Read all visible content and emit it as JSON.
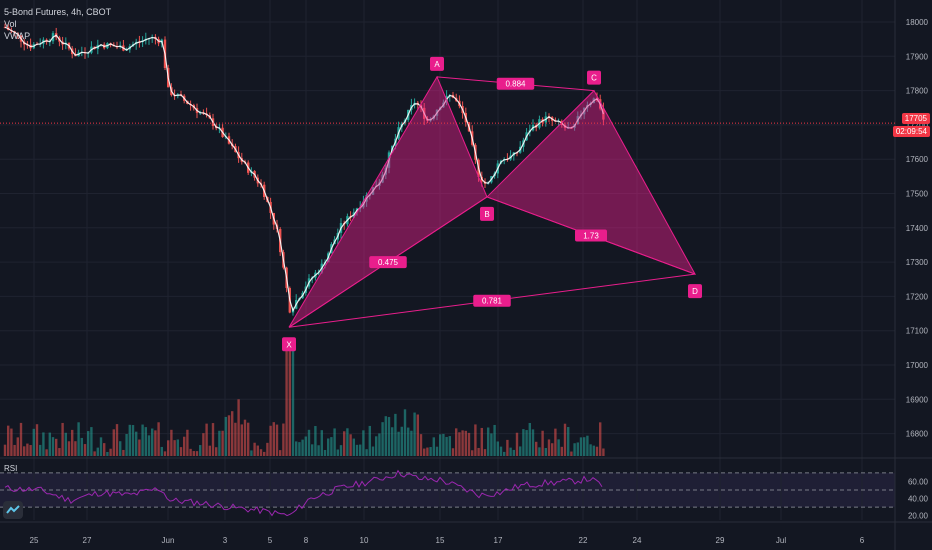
{
  "header": {
    "symbol": "5-Bond Futures",
    "interval": "4h",
    "exchange": "CBOT",
    "studies": [
      "Vol",
      "VWAP"
    ]
  },
  "price_axis": {
    "ticks": [
      18000,
      17900,
      17800,
      17700,
      17600,
      17500,
      17400,
      17300,
      17200,
      17100,
      17000,
      16900,
      16800
    ],
    "tick_labels": [
      "18000",
      "17900",
      "17800",
      "17700",
      "17600",
      "17500",
      "17400",
      "17300",
      "17200",
      "17100",
      "17000",
      "16900",
      "16800"
    ],
    "current_price": "17705",
    "countdown": "02:09:54",
    "current_color": "#f23645"
  },
  "rsi": {
    "label": "RSI",
    "ticks": [
      "60.00",
      "40.00",
      "20.00"
    ],
    "upper": 70,
    "lower": 30,
    "line_color": "#9c27b0"
  },
  "time_axis": {
    "labels": [
      "25",
      "27",
      "Jun",
      "3",
      "5",
      "8",
      "10",
      "15",
      "17",
      "22",
      "24",
      "29",
      "Jul",
      "6"
    ]
  },
  "chart_data": {
    "type": "candlestick",
    "title": "",
    "pattern": {
      "name": "harmonic",
      "points": [
        {
          "label": "X",
          "price": 17110
        },
        {
          "label": "A",
          "price": 17840
        },
        {
          "label": "B",
          "price": 17490
        },
        {
          "label": "C",
          "price": 17800
        },
        {
          "label": "D",
          "price": 17265
        }
      ],
      "ratios": [
        {
          "label": "0.475",
          "from": "X",
          "to": "B"
        },
        {
          "label": "0.884",
          "from": "A",
          "to": "C"
        },
        {
          "label": "1.73",
          "from": "B",
          "to": "D"
        },
        {
          "label": "0.781",
          "from": "X",
          "to": "D"
        }
      ],
      "color": "#e91e8c"
    },
    "price_range": [
      16750,
      18010
    ],
    "grid": true,
    "colors": {
      "up": "#26a69a",
      "down": "#ef5350",
      "vwap": "#ffffff"
    }
  }
}
